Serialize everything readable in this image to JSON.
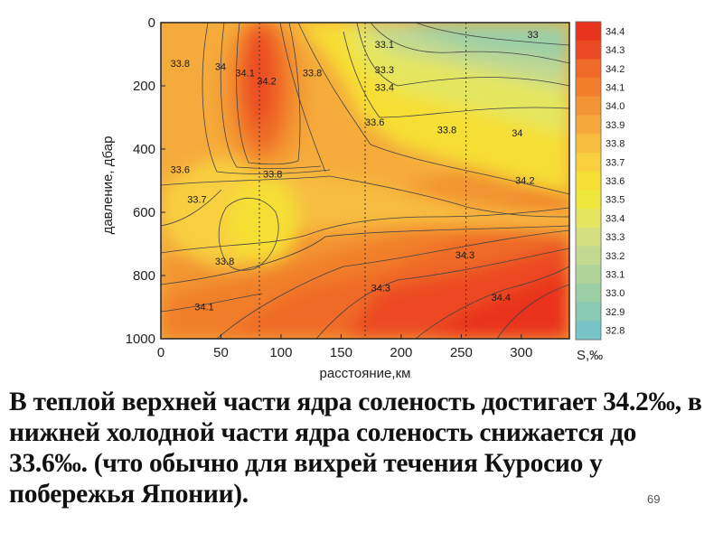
{
  "chart_data": {
    "type": "heatmap",
    "title": "",
    "xlabel": "расстояние,км",
    "ylabel": "давление, дбар",
    "xlim": [
      0,
      340
    ],
    "ylim": [
      1000,
      0
    ],
    "x_ticks": [
      "0",
      "50",
      "100",
      "150",
      "200",
      "250",
      "300"
    ],
    "y_ticks": [
      "0",
      "200",
      "400",
      "600",
      "800",
      "1000"
    ],
    "colorbar_label": "S,‰",
    "colorbar_levels": [
      "34.4",
      "34.3",
      "34.2",
      "34.1",
      "34.0",
      "33.9",
      "33.8",
      "33.7",
      "33.6",
      "33.5",
      "33.4",
      "33.3",
      "33.2",
      "33.1",
      "33.0",
      "32.9",
      "32.8"
    ],
    "colorbar_colors": [
      "#e8331f",
      "#ec4a22",
      "#ef6a28",
      "#f17f2c",
      "#f39433",
      "#f5a93a",
      "#f7bd3f",
      "#f8cf3f",
      "#f6df34",
      "#efe63b",
      "#e4e660",
      "#d3df81",
      "#c3d98f",
      "#b0d39a",
      "#9ccfa6",
      "#88cab4",
      "#78c4c6"
    ],
    "station_distances_km": [
      82,
      170,
      254
    ],
    "contour_labels": [
      {
        "text": "33.8",
        "x": 8,
        "y": 140
      },
      {
        "text": "34",
        "x": 45,
        "y": 150
      },
      {
        "text": "34.1",
        "x": 62,
        "y": 170
      },
      {
        "text": "34.2",
        "x": 80,
        "y": 195
      },
      {
        "text": "33.8",
        "x": 118,
        "y": 170
      },
      {
        "text": "33.1",
        "x": 178,
        "y": 80
      },
      {
        "text": "33.3",
        "x": 178,
        "y": 160
      },
      {
        "text": "33.4",
        "x": 178,
        "y": 215
      },
      {
        "text": "33.6",
        "x": 170,
        "y": 325
      },
      {
        "text": "33.8",
        "x": 230,
        "y": 350
      },
      {
        "text": "33",
        "x": 305,
        "y": 48
      },
      {
        "text": "34",
        "x": 292,
        "y": 360
      },
      {
        "text": "34.2",
        "x": 295,
        "y": 510
      },
      {
        "text": "33.6",
        "x": 8,
        "y": 475
      },
      {
        "text": "33.7",
        "x": 22,
        "y": 570
      },
      {
        "text": "33.8",
        "x": 85,
        "y": 490
      },
      {
        "text": "33.8",
        "x": 45,
        "y": 765
      },
      {
        "text": "34.3",
        "x": 245,
        "y": 745
      },
      {
        "text": "34.3",
        "x": 175,
        "y": 850
      },
      {
        "text": "34.4",
        "x": 275,
        "y": 880
      },
      {
        "text": "34.1",
        "x": 28,
        "y": 910
      }
    ]
  },
  "caption": {
    "text": "В теплой верхней части ядра соленость достигает 34.2‰, в нижней холодной части ядра соленость снижается до 33.6‰. (что обычно для вихрей течения Куросио у побережья Японии).",
    "page_number": "69"
  }
}
